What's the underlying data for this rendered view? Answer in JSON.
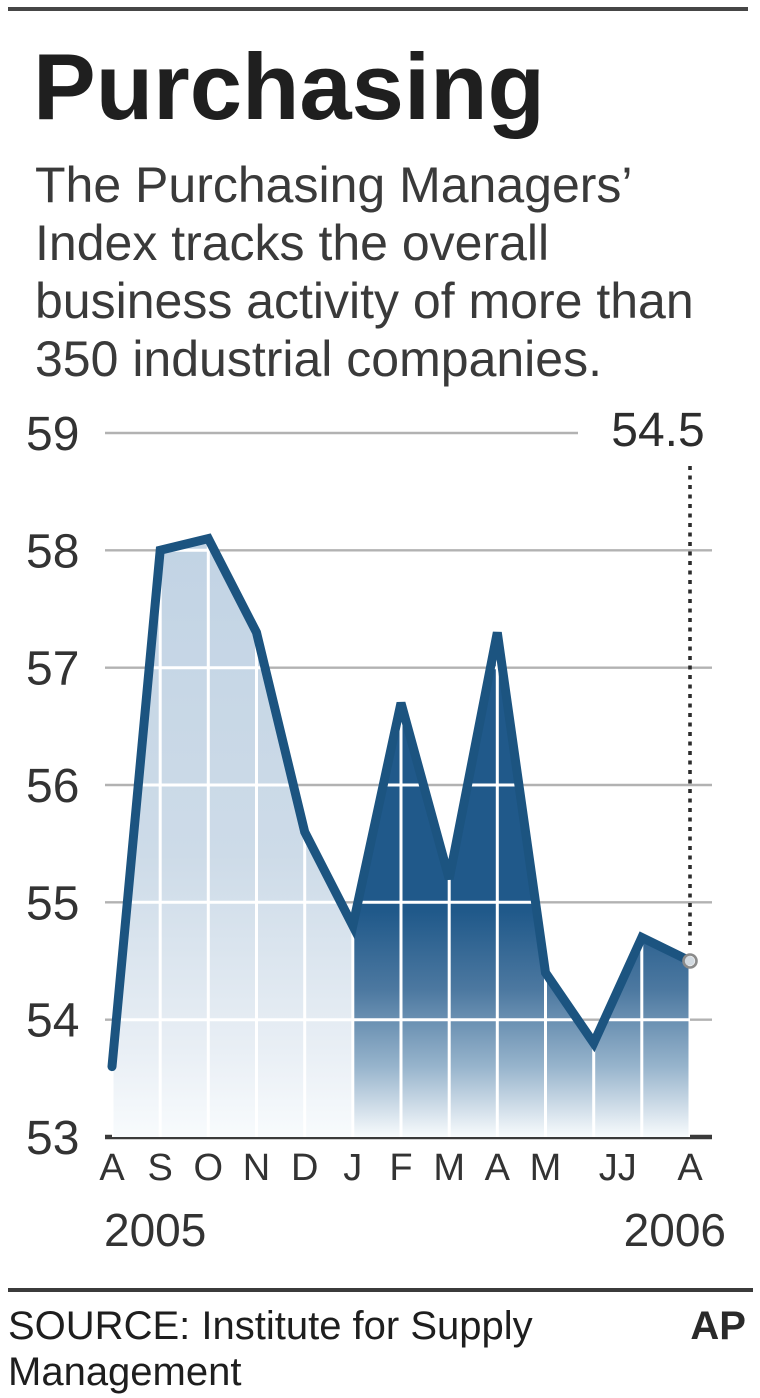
{
  "header": {
    "title": "Purchasing",
    "description_lines": [
      "The Purchasing Managers’",
      "Index tracks the overall",
      "business activity of more than",
      "350 industrial companies."
    ]
  },
  "chart_data": {
    "type": "area",
    "categories": [
      "A",
      "S",
      "O",
      "N",
      "D",
      "J",
      "F",
      "M",
      "A",
      "M",
      "J",
      "J",
      "A"
    ],
    "values": [
      53.6,
      58.0,
      58.1,
      57.3,
      55.6,
      54.8,
      56.7,
      55.2,
      57.3,
      54.4,
      53.8,
      54.7,
      54.5
    ],
    "split_index_2006": 5,
    "ylim": [
      53,
      59
    ],
    "yticks": [
      59,
      58,
      57,
      56,
      55,
      54,
      53
    ],
    "month_tick_labels": [
      {
        "at": 0,
        "label": "A"
      },
      {
        "at": 1,
        "label": "S"
      },
      {
        "at": 2,
        "label": "O"
      },
      {
        "at": 3,
        "label": "N"
      },
      {
        "at": 4,
        "label": "D"
      },
      {
        "at": 5,
        "label": "J"
      },
      {
        "at": 6,
        "label": "F"
      },
      {
        "at": 7,
        "label": "M"
      },
      {
        "at": 8,
        "label": "A"
      },
      {
        "at": 9,
        "label": "M"
      },
      {
        "at": 10.5,
        "label": "JJ"
      },
      {
        "at": 12,
        "label": "A"
      }
    ],
    "year_labels": [
      {
        "label": "2005",
        "anchor": "start"
      },
      {
        "label": "2006",
        "anchor": "end"
      }
    ],
    "callout_value": "54.5",
    "grid": true,
    "legend": "none",
    "colors": {
      "line": "#1c5480",
      "area_dark_top": "#20598a",
      "area_dark_mid": "#4c78a0",
      "area_dark_low": "#97b4cc",
      "area_light_top": "#bed1e3",
      "area_light_mid": "#cddbe8",
      "area_light_low": "#e9eff5",
      "area_fade_bottom": "#f8fbfd",
      "grid_gray": "#b2b2b2",
      "grid_white": "#ffffff",
      "axis": "#3a3a3a",
      "tick_text": "#333333",
      "callout_text": "#2d2d2d",
      "dotted_line": "#2b2b2b",
      "marker_stroke": "#8b8b8b",
      "marker_fill": "#f2f2f2"
    }
  },
  "footer": {
    "source_line1": "SOURCE: Institute for Supply",
    "source_line2": "Management",
    "credit": "AP"
  }
}
